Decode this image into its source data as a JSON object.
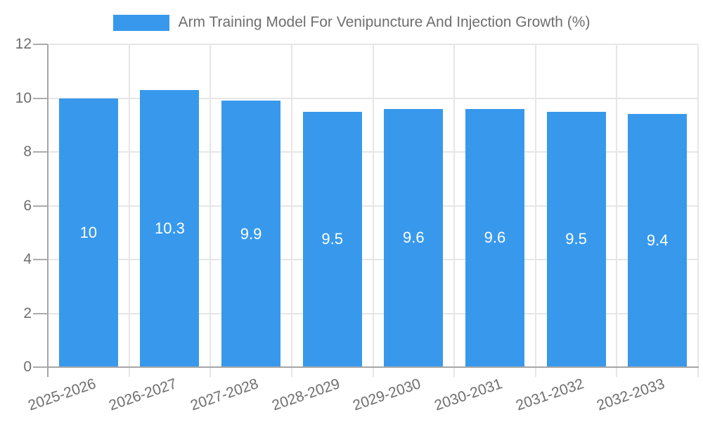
{
  "chart_data": {
    "type": "bar",
    "title": "Arm Training Model For Venipuncture And Injection Growth (%)",
    "categories": [
      "2025-2026",
      "2026-2027",
      "2027-2028",
      "2028-2029",
      "2029-2030",
      "2030-2031",
      "2031-2032",
      "2032-2033"
    ],
    "values": [
      10,
      10.3,
      9.9,
      9.5,
      9.6,
      9.6,
      9.5,
      9.4
    ],
    "xlabel": "",
    "ylabel": "",
    "ylim": [
      0,
      12
    ],
    "yticks": [
      0,
      2,
      4,
      6,
      8,
      10,
      12
    ],
    "grid": true,
    "legend_position": "top",
    "bar_color": "#3899ec",
    "value_label_color": "#ffffff",
    "tick_label_color": "#6e6e6e",
    "gridline_color": "#e6e6e6",
    "axis_color": "#a6a6a6"
  }
}
